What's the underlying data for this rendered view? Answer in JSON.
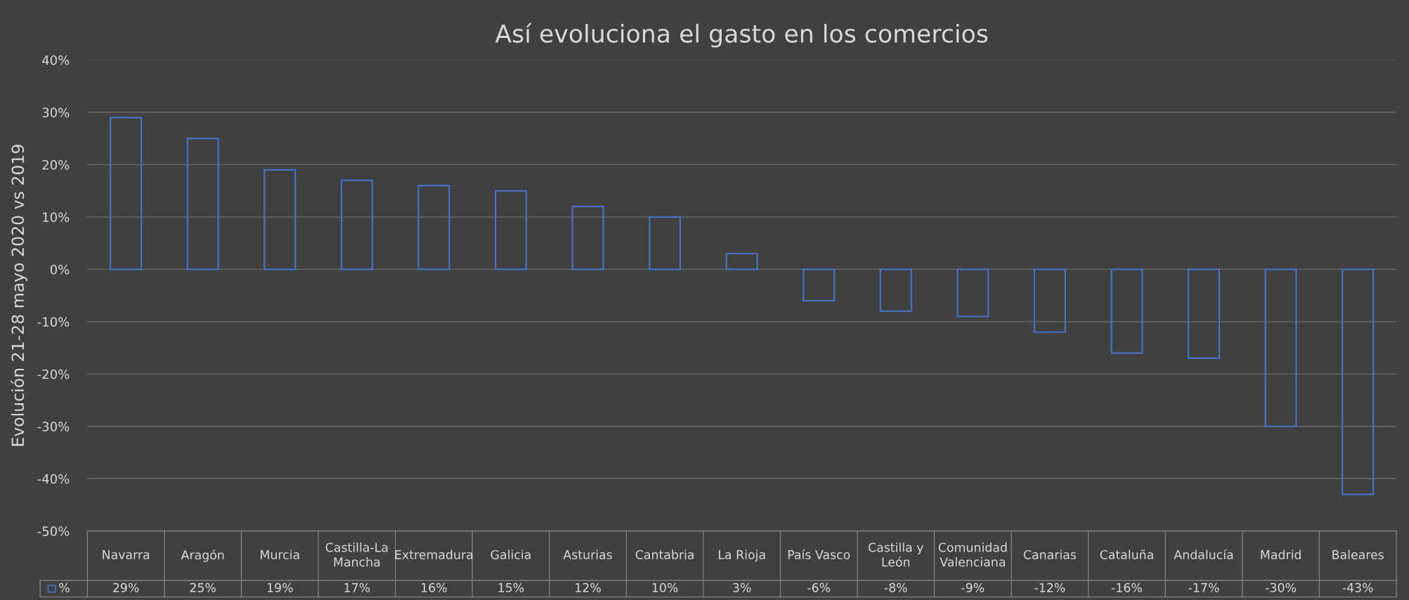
{
  "chart_data": {
    "type": "bar",
    "title": "Así evoluciona el gasto en los comercios",
    "ylabel": "Evolución 21-28 mayo 2020 vs 2019",
    "categories": [
      "Navarra",
      "Aragón",
      "Murcia",
      "Castilla-La\nMancha",
      "Extremadura",
      "Galicia",
      "Asturias",
      "Cantabria",
      "La Rioja",
      "País Vasco",
      "Castilla y\nLeón",
      "Comunidad\nValenciana",
      "Canarias",
      "Cataluña",
      "Andalucía",
      "Madrid",
      "Baleares"
    ],
    "series": [
      {
        "name": "%",
        "color": "#4472c4",
        "values": [
          29,
          25,
          19,
          17,
          16,
          15,
          12,
          10,
          3,
          -6,
          -8,
          -9,
          -12,
          -16,
          -17,
          -30,
          -43
        ],
        "value_labels": [
          "29%",
          "25%",
          "19%",
          "17%",
          "16%",
          "15%",
          "12%",
          "10%",
          "3%",
          "-6%",
          "-8%",
          "-9%",
          "-12%",
          "-16%",
          "-17%",
          "-30%",
          "-43%"
        ]
      }
    ],
    "ylim": [
      -50,
      40
    ],
    "yticks": [
      {
        "value": -50,
        "label": "-50%"
      },
      {
        "value": -40,
        "label": "-40%"
      },
      {
        "value": -30,
        "label": "-30%"
      },
      {
        "value": -20,
        "label": "-20%"
      },
      {
        "value": -10,
        "label": "-10%"
      },
      {
        "value": 0,
        "label": "0%"
      },
      {
        "value": 10,
        "label": "10%"
      },
      {
        "value": 20,
        "label": "20%"
      },
      {
        "value": 30,
        "label": "30%"
      },
      {
        "value": 40,
        "label": "40%"
      }
    ],
    "grid": "y"
  }
}
